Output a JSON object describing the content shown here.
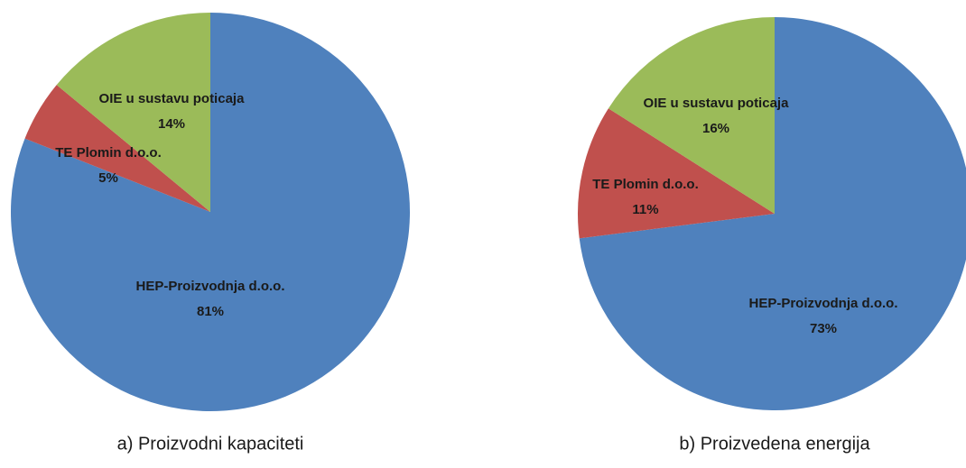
{
  "chart_data": [
    {
      "type": "pie",
      "title": "a) Proizvodni kapaciteti",
      "categories": [
        "HEP-Proizvodnja d.o.o.",
        "TE Plomin d.o.o.",
        "OIE u sustavu poticaja"
      ],
      "values": [
        81,
        5,
        14
      ],
      "value_labels": [
        "81%",
        "5%",
        "14%"
      ],
      "colors": [
        "#4f81bd",
        "#c0504d",
        "#9bbb59"
      ]
    },
    {
      "type": "pie",
      "title": "b) Proizvedena energija",
      "categories": [
        "HEP-Proizvodnja d.o.o.",
        "TE Plomin d.o.o.",
        "OIE u sustavu poticaja"
      ],
      "values": [
        73,
        11,
        16
      ],
      "value_labels": [
        "73%",
        "11%",
        "16%"
      ],
      "colors": [
        "#4f81bd",
        "#c0504d",
        "#9bbb59"
      ]
    }
  ]
}
